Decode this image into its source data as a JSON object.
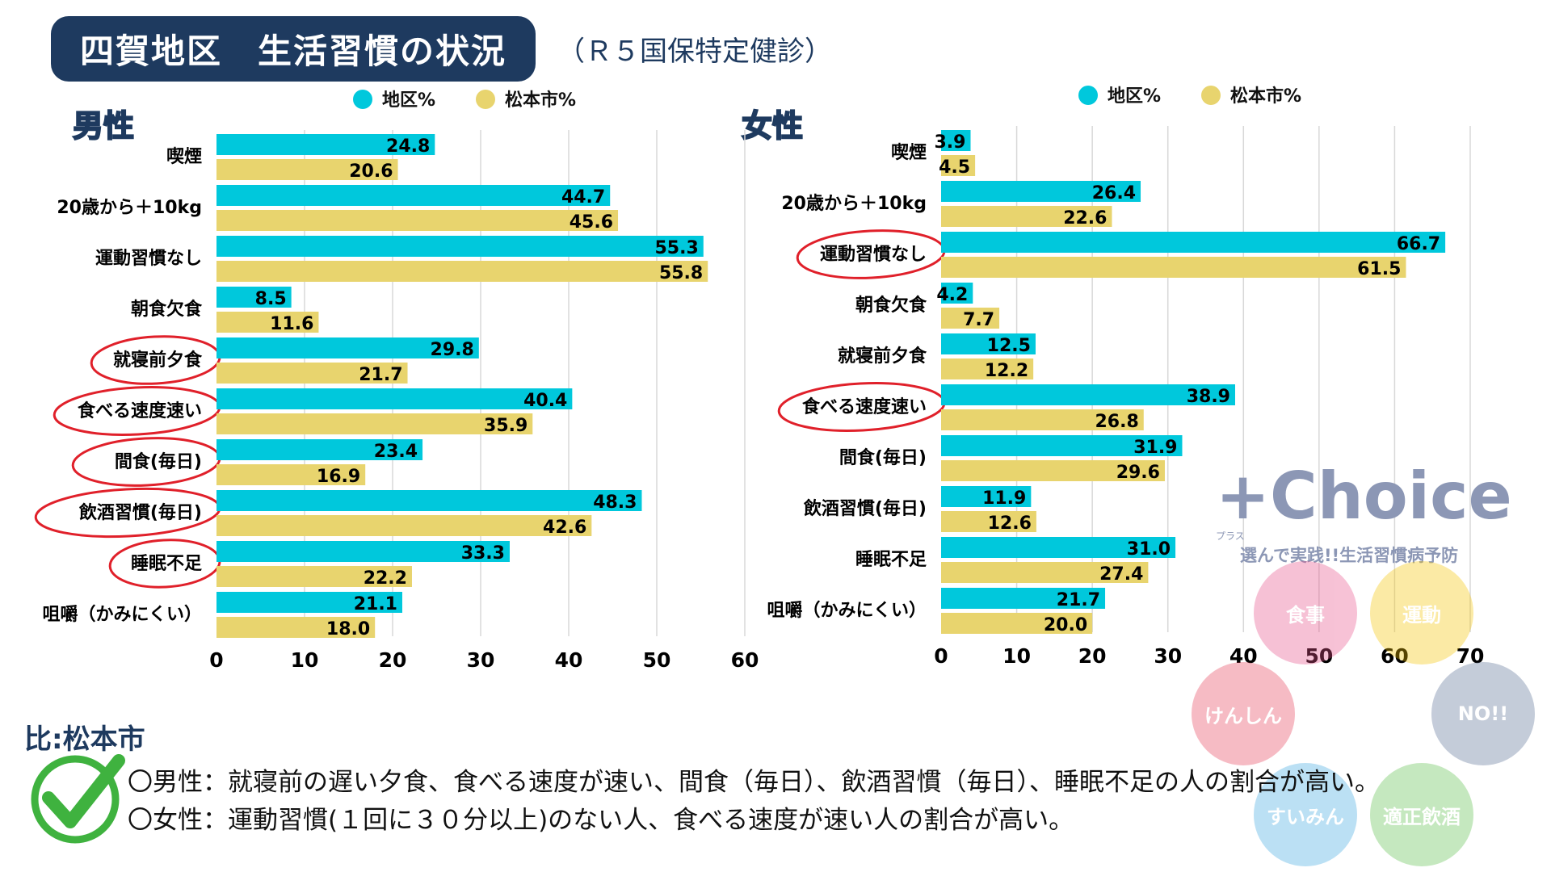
{
  "header": {
    "title": "四賀地区　生活習慣の状況",
    "subtitle": "（Ｒ５国保特定健診）"
  },
  "chart_data": [
    {
      "type": "bar",
      "orientation": "horizontal",
      "panel_label": "男性",
      "categories": [
        "喫煙",
        "20歳から＋10kg",
        "運動習慣なし",
        "朝食欠食",
        "就寝前夕食",
        "食べる速度速い",
        "間食(毎日)",
        "飲酒習慣(毎日)",
        "睡眠不足",
        "咀嚼（かみにくい）"
      ],
      "highlighted": [
        "就寝前夕食",
        "食べる速度速い",
        "間食(毎日)",
        "飲酒習慣(毎日)",
        "睡眠不足"
      ],
      "series": [
        {
          "name": "地区%",
          "color": "#00c8dc",
          "values": [
            24.8,
            44.7,
            55.3,
            8.5,
            29.8,
            40.4,
            23.4,
            48.3,
            33.3,
            21.1
          ]
        },
        {
          "name": "松本市%",
          "color": "#e8d46e",
          "values": [
            20.6,
            45.6,
            55.8,
            11.6,
            21.7,
            35.9,
            16.9,
            42.6,
            22.2,
            18.0
          ]
        }
      ],
      "xlim": [
        0,
        60
      ],
      "xticks": [
        0,
        10,
        20,
        30,
        40,
        50,
        60
      ],
      "grid": true,
      "legend": "top"
    },
    {
      "type": "bar",
      "orientation": "horizontal",
      "panel_label": "女性",
      "categories": [
        "喫煙",
        "20歳から＋10kg",
        "運動習慣なし",
        "朝食欠食",
        "就寝前夕食",
        "食べる速度速い",
        "間食(毎日)",
        "飲酒習慣(毎日)",
        "睡眠不足",
        "咀嚼（かみにくい）"
      ],
      "highlighted": [
        "運動習慣なし",
        "食べる速度速い"
      ],
      "series": [
        {
          "name": "地区%",
          "color": "#00c8dc",
          "values": [
            3.9,
            26.4,
            66.7,
            4.2,
            12.5,
            38.9,
            31.9,
            11.9,
            31.0,
            21.7
          ]
        },
        {
          "name": "松本市%",
          "color": "#e8d46e",
          "values": [
            4.5,
            22.6,
            61.5,
            7.7,
            12.2,
            26.8,
            29.6,
            12.6,
            27.4,
            20.0
          ]
        }
      ],
      "xlim": [
        0,
        70
      ],
      "xticks": [
        0,
        10,
        20,
        30,
        40,
        50,
        60,
        70
      ],
      "grid": true,
      "legend": "top"
    }
  ],
  "notes": {
    "heading": "比:松本市",
    "male": "〇男性：就寝前の遅い夕食、食べる速度が速い、間食（毎日）、飲酒習慣（毎日）、睡眠不足の人の割合が高い。",
    "female": "〇女性：運動習慣(１回に３０分以上)のない人、食べる速度が速い人の割合が高い。"
  },
  "logo": {
    "brand": "+Choice",
    "ruby": "プラス",
    "tagline": "選んで実践!!生活習慣病予防",
    "circles": [
      "食事",
      "運動",
      "けんしん",
      "NO!!",
      "すいみん",
      "適正飲酒"
    ]
  }
}
